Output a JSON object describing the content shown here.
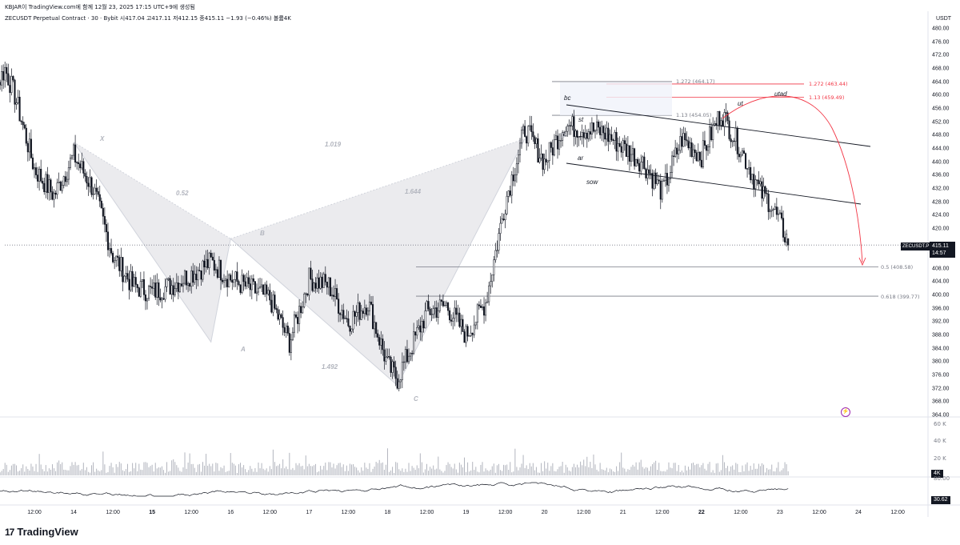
{
  "header": {
    "author_line": "KBJAR이 TradingView.com에 함께 12월 23, 2025 17:15 UTC+9에 생성됨",
    "symbol_line": "ZECUSDT Perpetual Contract · 30 · Bybit  시417.04  고417.11  저412.15  종415.11  −1.93 (−0.46%)  볼륨4K"
  },
  "brand": {
    "logo": "17",
    "name": "TradingView"
  },
  "axis": {
    "currency": "USDT",
    "price_ticks": [
      "480.00",
      "476.00",
      "472.00",
      "468.00",
      "464.00",
      "460.00",
      "456.00",
      "452.00",
      "448.00",
      "444.00",
      "440.00",
      "436.00",
      "432.00",
      "428.00",
      "424.00",
      "420.00",
      "412.00",
      "408.00",
      "404.00",
      "400.00",
      "396.00",
      "392.00",
      "388.00",
      "384.00",
      "380.00",
      "376.00",
      "372.00",
      "368.00",
      "364.00"
    ],
    "volume_ticks": [
      "60 K",
      "40 K",
      "20 K"
    ],
    "osc_ticks": [
      "80.00"
    ],
    "x_ticks": [
      {
        "label": "12:00",
        "bold": false
      },
      {
        "label": "14",
        "bold": false
      },
      {
        "label": "12:00",
        "bold": false
      },
      {
        "label": "15",
        "bold": true
      },
      {
        "label": "12:00",
        "bold": false
      },
      {
        "label": "16",
        "bold": false
      },
      {
        "label": "12:00",
        "bold": false
      },
      {
        "label": "17",
        "bold": false
      },
      {
        "label": "12:00",
        "bold": false
      },
      {
        "label": "18",
        "bold": false
      },
      {
        "label": "12:00",
        "bold": false
      },
      {
        "label": "19",
        "bold": false
      },
      {
        "label": "12:00",
        "bold": false
      },
      {
        "label": "20",
        "bold": false
      },
      {
        "label": "12:00",
        "bold": false
      },
      {
        "label": "21",
        "bold": false
      },
      {
        "label": "12:00",
        "bold": false
      },
      {
        "label": "22",
        "bold": true
      },
      {
        "label": "12:00",
        "bold": false
      },
      {
        "label": "23",
        "bold": false
      },
      {
        "label": "12:00",
        "bold": false
      },
      {
        "label": "24",
        "bold": false
      },
      {
        "label": "12:00",
        "bold": false
      }
    ]
  },
  "tags": {
    "symbol": "ZECUSDT.P",
    "last_price": "415.11",
    "countdown": "14:57",
    "volume": "4K",
    "osc_value": "30.62"
  },
  "annotations": {
    "xabcd_points": [
      "X",
      "A",
      "B",
      "C",
      "D"
    ],
    "xabcd_ratios": [
      "0.52",
      "1.019",
      "1.644",
      "1.492"
    ],
    "wyckoff": [
      "bc",
      "st",
      "ar",
      "sow",
      "ut",
      "utad"
    ],
    "fib_levels": [
      {
        "label": "1.272 (464.17)",
        "color": "#787b86"
      },
      {
        "label": "1.272 (463.44)",
        "color": "#f23645"
      },
      {
        "label": "1.13 (459.49)",
        "color": "#f23645"
      },
      {
        "label": "1.13 (454.05)",
        "color": "#787b86"
      },
      {
        "label": "0.5 (408.58)",
        "color": "#787b86"
      },
      {
        "label": "0.618 (399.77)",
        "color": "#787b86"
      }
    ]
  },
  "colors": {
    "candle": "#131722",
    "pattern_fill": "#e9e9ec",
    "projection": "#f23645",
    "fib_red": "#f23645",
    "fib_gray": "#787b86"
  },
  "chart_data": {
    "type": "candlestick",
    "interval": "30m",
    "title": "ZECUSDT Perpetual Contract · 30 · Bybit",
    "ylim": [
      364,
      482
    ],
    "last": {
      "open": 417.04,
      "high": 417.11,
      "low": 412.15,
      "close": 415.11,
      "change": -1.93,
      "change_pct": -0.46,
      "volume": "4K"
    },
    "anchors": [
      {
        "t": "13 06:00",
        "p": 456
      },
      {
        "t": "13 09:00",
        "p": 455
      },
      {
        "t": "13 12:00",
        "p": 462
      },
      {
        "t": "13 15:00",
        "p": 468
      },
      {
        "t": "13 18:00",
        "p": 460
      },
      {
        "t": "14 00:00",
        "p": 438
      },
      {
        "t": "14 06:00",
        "p": 430
      },
      {
        "t": "14 12:00",
        "p": 442
      },
      {
        "t": "14 18:00",
        "p": 432
      },
      {
        "t": "15 00:00",
        "p": 412
      },
      {
        "t": "15 06:00",
        "p": 403
      },
      {
        "t": "15 12:00",
        "p": 401
      },
      {
        "t": "15 18:00",
        "p": 403
      },
      {
        "t": "16 06:00",
        "p": 410
      },
      {
        "t": "16 12:00",
        "p": 405
      },
      {
        "t": "17 00:00",
        "p": 399
      },
      {
        "t": "17 06:00",
        "p": 386
      },
      {
        "t": "17 12:00",
        "p": 405
      },
      {
        "t": "17 18:00",
        "p": 403
      },
      {
        "t": "18 00:00",
        "p": 392
      },
      {
        "t": "18 06:00",
        "p": 398
      },
      {
        "t": "18 12:00",
        "p": 379
      },
      {
        "t": "18 15:00",
        "p": 375
      },
      {
        "t": "19 00:00",
        "p": 395
      },
      {
        "t": "19 06:00",
        "p": 397
      },
      {
        "t": "19 12:00",
        "p": 388
      },
      {
        "t": "19 18:00",
        "p": 398
      },
      {
        "t": "20 00:00",
        "p": 428
      },
      {
        "t": "20 06:00",
        "p": 450
      },
      {
        "t": "20 12:00",
        "p": 440
      },
      {
        "t": "20 18:00",
        "p": 451
      },
      {
        "t": "21 06:00",
        "p": 449
      },
      {
        "t": "21 18:00",
        "p": 440
      },
      {
        "t": "22 00:00",
        "p": 431
      },
      {
        "t": "22 06:00",
        "p": 447
      },
      {
        "t": "22 12:00",
        "p": 442
      },
      {
        "t": "22 18:00",
        "p": 455
      },
      {
        "t": "23 00:00",
        "p": 444
      },
      {
        "t": "23 06:00",
        "p": 431
      },
      {
        "t": "23 09:00",
        "p": 428
      },
      {
        "t": "23 15:00",
        "p": 415
      }
    ],
    "xabcd": [
      {
        "label": "X",
        "price": 446
      },
      {
        "label": "A",
        "price": 386
      },
      {
        "label": "B",
        "price": 417
      },
      {
        "label": "C",
        "price": 373
      },
      {
        "label": "D",
        "price": 447
      }
    ],
    "fib": [
      {
        "ratio": 1.272,
        "price": 464.17
      },
      {
        "ratio": 1.272,
        "price": 463.44
      },
      {
        "ratio": 1.13,
        "price": 459.49
      },
      {
        "ratio": 1.13,
        "price": 454.05
      },
      {
        "ratio": 0.5,
        "price": 408.58
      },
      {
        "ratio": 0.618,
        "price": 399.77
      }
    ],
    "volume_axis": [
      0,
      60000
    ],
    "oscillator_last": 30.62
  }
}
